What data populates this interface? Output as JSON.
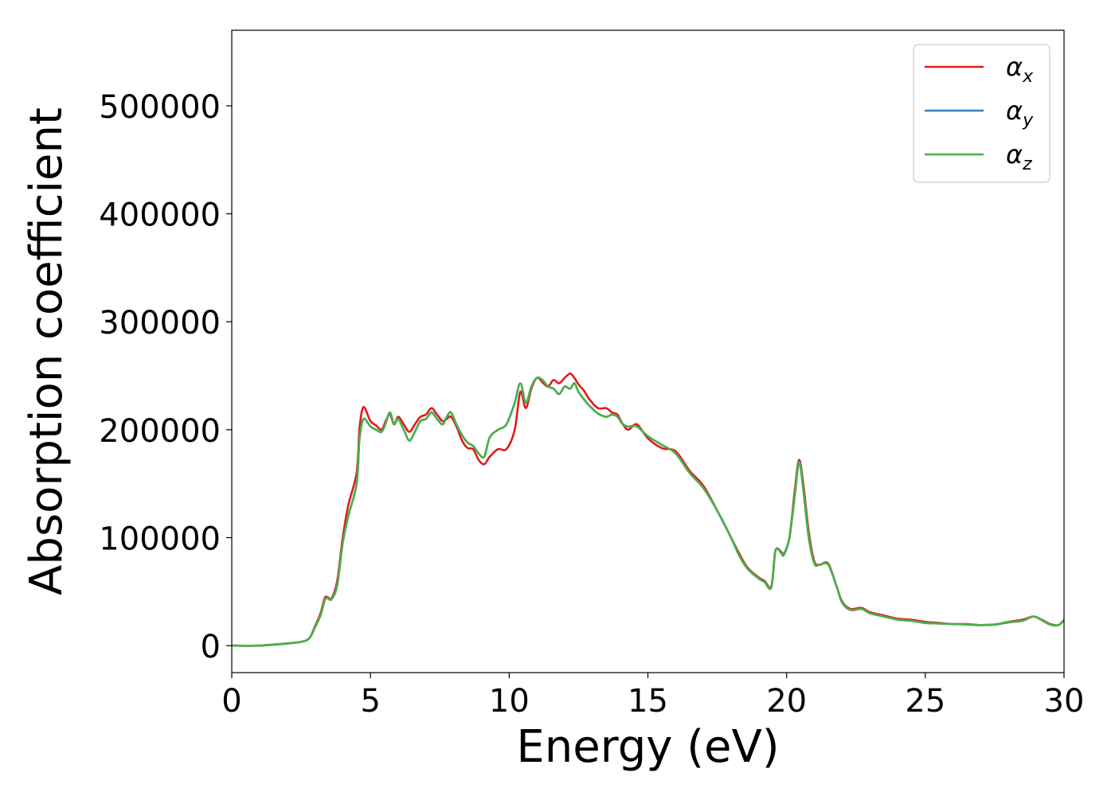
{
  "chart_data": {
    "type": "line",
    "xlabel": "Energy (eV)",
    "ylabel": "Absorption coefficient",
    "xlim": [
      0,
      30
    ],
    "ylim": [
      -25000,
      570000
    ],
    "xticks": [
      0,
      5,
      10,
      15,
      20,
      25,
      30
    ],
    "xtick_labels": [
      "0",
      "5",
      "10",
      "15",
      "20",
      "25",
      "30"
    ],
    "yticks": [
      0,
      100000,
      200000,
      300000,
      400000,
      500000
    ],
    "ytick_labels": [
      "0",
      "100000",
      "200000",
      "300000",
      "400000",
      "500000"
    ],
    "grid": false,
    "legend_position": "top-right",
    "series": [
      {
        "name": "α_x",
        "name_main": "α",
        "name_sub": "x",
        "color": "#e41a1c",
        "x": [
          0,
          1,
          2,
          2.5,
          2.8,
          3.0,
          3.2,
          3.35,
          3.45,
          3.6,
          3.8,
          4.0,
          4.2,
          4.5,
          4.6,
          4.7,
          4.8,
          5.0,
          5.2,
          5.4,
          5.55,
          5.7,
          5.85,
          6.0,
          6.2,
          6.4,
          6.6,
          6.8,
          7.0,
          7.2,
          7.4,
          7.6,
          7.75,
          7.9,
          8.1,
          8.3,
          8.5,
          8.7,
          8.9,
          9.1,
          9.3,
          9.6,
          9.9,
          10.2,
          10.4,
          10.6,
          10.8,
          11.0,
          11.2,
          11.4,
          11.6,
          11.8,
          12.0,
          12.2,
          12.35,
          12.5,
          12.7,
          12.9,
          13.2,
          13.5,
          13.7,
          13.9,
          14.1,
          14.3,
          14.6,
          15.0,
          15.5,
          16.0,
          16.5,
          17.0,
          17.5,
          18.0,
          18.3,
          18.6,
          19.0,
          19.2,
          19.45,
          19.6,
          19.8,
          19.9,
          20.1,
          20.3,
          20.45,
          20.6,
          20.8,
          21.0,
          21.2,
          21.5,
          21.8,
          22.0,
          22.3,
          22.7,
          23.0,
          23.5,
          24.0,
          24.5,
          25.0,
          25.5,
          26.0,
          26.5,
          27.0,
          27.5,
          28.0,
          28.5,
          28.9,
          29.2,
          29.5,
          29.8,
          30.0
        ],
        "values": [
          0,
          0,
          2000,
          3500,
          7000,
          18000,
          30000,
          44000,
          45000,
          44000,
          60000,
          100000,
          130000,
          160000,
          200000,
          218000,
          220000,
          208000,
          204000,
          200000,
          208000,
          214000,
          205000,
          212000,
          205000,
          198000,
          205000,
          212000,
          214000,
          220000,
          214000,
          208000,
          210000,
          212000,
          203000,
          190000,
          183000,
          182000,
          172000,
          168000,
          175000,
          182000,
          182000,
          200000,
          235000,
          220000,
          238000,
          248000,
          244000,
          240000,
          246000,
          243000,
          248000,
          252000,
          248000,
          242000,
          236000,
          228000,
          220000,
          220000,
          216000,
          214000,
          205000,
          200000,
          205000,
          192000,
          183000,
          180000,
          162000,
          148000,
          125000,
          100000,
          85000,
          72000,
          63000,
          60000,
          55000,
          88000,
          87000,
          85000,
          100000,
          145000,
          172000,
          150000,
          105000,
          78000,
          75000,
          76000,
          55000,
          41000,
          34000,
          35000,
          31000,
          28000,
          25000,
          24000,
          22000,
          21000,
          20000,
          20000,
          19000,
          19500,
          22000,
          24000,
          27000,
          24000,
          20000,
          19000,
          24000
        ]
      },
      {
        "name": "α_y",
        "name_main": "α",
        "name_sub": "y",
        "color": "#377eb8",
        "x": [
          0,
          1,
          2,
          2.5,
          2.8,
          3.0,
          3.2,
          3.35,
          3.45,
          3.6,
          3.8,
          4.0,
          4.2,
          4.5,
          4.6,
          4.7,
          4.8,
          5.0,
          5.2,
          5.4,
          5.55,
          5.7,
          5.85,
          6.0,
          6.2,
          6.4,
          6.6,
          6.8,
          7.0,
          7.2,
          7.4,
          7.6,
          7.75,
          7.9,
          8.1,
          8.3,
          8.5,
          8.7,
          8.9,
          9.1,
          9.3,
          9.6,
          9.9,
          10.2,
          10.4,
          10.6,
          10.8,
          11.0,
          11.2,
          11.4,
          11.6,
          11.8,
          12.0,
          12.2,
          12.35,
          12.5,
          12.7,
          12.9,
          13.2,
          13.5,
          13.7,
          13.9,
          14.1,
          14.3,
          14.6,
          15.0,
          15.5,
          16.0,
          16.5,
          17.0,
          17.5,
          18.0,
          18.3,
          18.6,
          19.0,
          19.2,
          19.45,
          19.6,
          19.8,
          19.9,
          20.1,
          20.3,
          20.45,
          20.6,
          20.8,
          21.0,
          21.2,
          21.5,
          21.8,
          22.0,
          22.3,
          22.7,
          23.0,
          23.5,
          24.0,
          24.5,
          25.0,
          25.5,
          26.0,
          26.5,
          27.0,
          27.5,
          28.0,
          28.5,
          28.9,
          29.2,
          29.5,
          29.8,
          30.0
        ],
        "values": [
          0,
          0,
          2000,
          3500,
          7000,
          17000,
          28000,
          42000,
          44000,
          43000,
          56000,
          95000,
          120000,
          150000,
          190000,
          207000,
          210000,
          203000,
          200000,
          198000,
          206000,
          216000,
          205000,
          210000,
          200000,
          190000,
          198000,
          208000,
          210000,
          216000,
          210000,
          205000,
          212000,
          216000,
          205000,
          195000,
          188000,
          185000,
          178000,
          175000,
          193000,
          200000,
          205000,
          225000,
          243000,
          225000,
          240000,
          248000,
          246000,
          240000,
          238000,
          233000,
          240000,
          238000,
          243000,
          235000,
          228000,
          222000,
          215000,
          212000,
          214000,
          212000,
          205000,
          203000,
          203000,
          194000,
          186000,
          178000,
          160000,
          146000,
          125000,
          100000,
          83000,
          71000,
          62000,
          59000,
          54000,
          88000,
          86000,
          84000,
          100000,
          140000,
          170000,
          145000,
          100000,
          76000,
          75000,
          75000,
          55000,
          40000,
          33000,
          34000,
          30000,
          27000,
          24000,
          23000,
          21000,
          20500,
          20000,
          19500,
          19000,
          19500,
          21500,
          23000,
          27000,
          23500,
          19500,
          19000,
          23500
        ]
      },
      {
        "name": "α_z",
        "name_main": "α",
        "name_sub": "z",
        "color": "#4daf4a",
        "x": [
          0,
          1,
          2,
          2.5,
          2.8,
          3.0,
          3.2,
          3.35,
          3.45,
          3.6,
          3.8,
          4.0,
          4.2,
          4.5,
          4.6,
          4.7,
          4.8,
          5.0,
          5.2,
          5.4,
          5.55,
          5.7,
          5.85,
          6.0,
          6.2,
          6.4,
          6.6,
          6.8,
          7.0,
          7.2,
          7.4,
          7.6,
          7.75,
          7.9,
          8.1,
          8.3,
          8.5,
          8.7,
          8.9,
          9.1,
          9.3,
          9.6,
          9.9,
          10.2,
          10.4,
          10.6,
          10.8,
          11.0,
          11.2,
          11.4,
          11.6,
          11.8,
          12.0,
          12.2,
          12.35,
          12.5,
          12.7,
          12.9,
          13.2,
          13.5,
          13.7,
          13.9,
          14.1,
          14.3,
          14.6,
          15.0,
          15.5,
          16.0,
          16.5,
          17.0,
          17.5,
          18.0,
          18.3,
          18.6,
          19.0,
          19.2,
          19.45,
          19.6,
          19.8,
          19.9,
          20.1,
          20.3,
          20.45,
          20.6,
          20.8,
          21.0,
          21.2,
          21.5,
          21.8,
          22.0,
          22.3,
          22.7,
          23.0,
          23.5,
          24.0,
          24.5,
          25.0,
          25.5,
          26.0,
          26.5,
          27.0,
          27.5,
          28.0,
          28.5,
          28.9,
          29.2,
          29.5,
          29.8,
          30.0
        ],
        "values": [
          0,
          0,
          2000,
          3500,
          7000,
          17000,
          28000,
          42000,
          44000,
          43000,
          56000,
          95000,
          120000,
          150000,
          190000,
          207000,
          210000,
          203000,
          200000,
          198000,
          206000,
          216000,
          205000,
          210000,
          200000,
          190000,
          198000,
          208000,
          210000,
          216000,
          210000,
          205000,
          212000,
          216000,
          205000,
          195000,
          188000,
          185000,
          178000,
          175000,
          193000,
          200000,
          205000,
          225000,
          243000,
          225000,
          240000,
          248000,
          246000,
          240000,
          238000,
          233000,
          240000,
          238000,
          243000,
          235000,
          228000,
          222000,
          215000,
          212000,
          214000,
          212000,
          205000,
          203000,
          203000,
          194000,
          186000,
          178000,
          160000,
          146000,
          125000,
          100000,
          83000,
          71000,
          62000,
          59000,
          54000,
          88000,
          86000,
          84000,
          100000,
          140000,
          170000,
          145000,
          100000,
          76000,
          75000,
          75000,
          55000,
          40000,
          33000,
          34000,
          30000,
          27000,
          24000,
          23000,
          21000,
          20500,
          20000,
          19500,
          19000,
          19500,
          21500,
          23000,
          27000,
          23500,
          19500,
          19000,
          23500
        ]
      }
    ]
  }
}
